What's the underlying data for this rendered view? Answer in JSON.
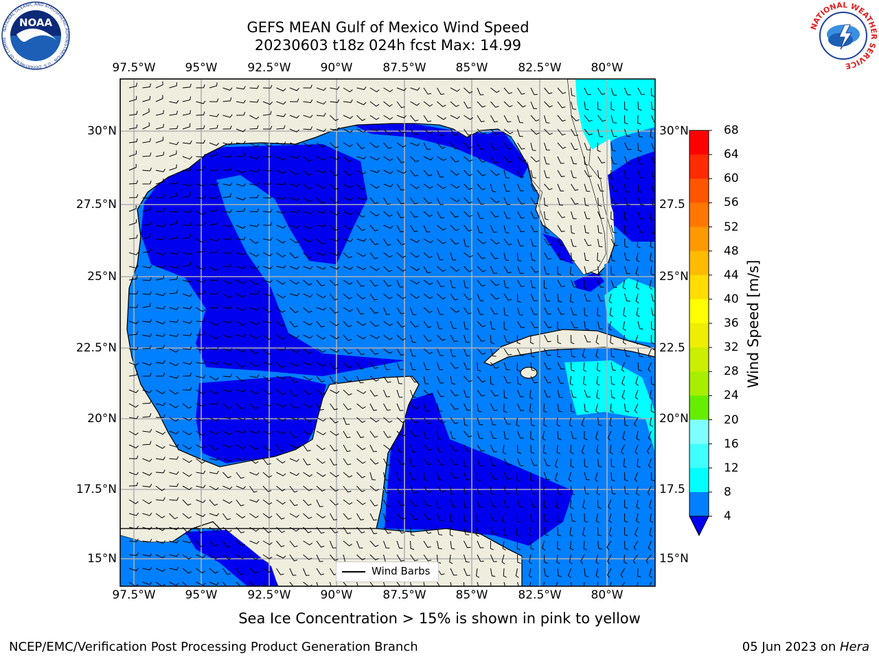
{
  "title": {
    "line1": "GEFS MEAN Gulf of Mexico Wind Speed",
    "line2": "20230603 t18z 024h fcst   Max: 14.99"
  },
  "axes": {
    "lon_labels": [
      "97.5°W",
      "95°W",
      "92.5°W",
      "90°W",
      "87.5°W",
      "85°W",
      "82.5°W",
      "80°W"
    ],
    "lat_labels_left": [
      "30°N",
      "27.5°N",
      "25°N",
      "22.5°N",
      "20°N",
      "17.5°N",
      "15°N"
    ],
    "lat_labels_right": [
      "30°N",
      "27.5",
      "25°N",
      "22.5",
      "20°N",
      "17.5",
      "15°N"
    ]
  },
  "colorbar": {
    "label": "Wind Speed [m/s]",
    "ticks": [
      "68",
      "64",
      "60",
      "56",
      "52",
      "48",
      "44",
      "40",
      "36",
      "32",
      "28",
      "24",
      "20",
      "16",
      "12",
      "8",
      "4"
    ],
    "colors": [
      "#0000ee",
      "#007fff",
      "#00ffff",
      "#40ffff",
      "#80ffff",
      "#b0ffe0",
      "#50ff70",
      "#22ee22",
      "#00cc00",
      "#66ee00",
      "#a8ee00",
      "#ccee00",
      "#eeee00",
      "#ffff00",
      "#ffdd00",
      "#ffbb00",
      "#ff9900",
      "#ff7700",
      "#ff5500",
      "#ff2a00",
      "#ff0000"
    ]
  },
  "legend": {
    "label": "Wind Barbs"
  },
  "caption": "Sea Ice Concentration > 15% is shown in pink to yellow",
  "footer": {
    "left": "NCEP/EMC/Verification Post Processing Product Generation Branch",
    "right_prefix": "05 Jun 2023 on ",
    "right_host": "Hera"
  },
  "map_colors": {
    "land": "#efedde",
    "band_0_4": "#0000ee",
    "band_4_8": "#007fff",
    "band_8_12": "#00ffff",
    "grid": "#b0b0b0"
  },
  "logos": {
    "left": "NOAA",
    "right_ring": "NATIONAL WEATHER SERVICE"
  }
}
